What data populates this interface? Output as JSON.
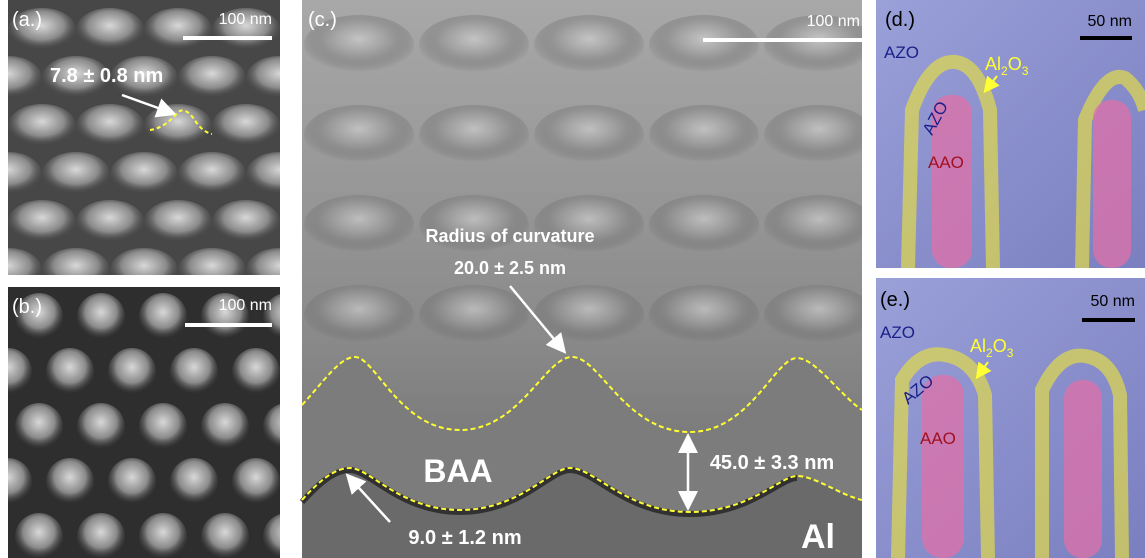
{
  "panels": [
    {
      "label": "(a.)",
      "scale_bar": "100 nm",
      "annotations": [
        "7.8 ± 0.8 nm"
      ]
    },
    {
      "label": "(b.)",
      "scale_bar": "100 nm"
    },
    {
      "label": "(c.)",
      "scale_bar": "100 nm",
      "annotations": [
        "Radius of curvature",
        "20.0 ± 2.5 nm",
        "BAA",
        "45.0 ± 3.3 nm",
        "9.0 ± 1.2 nm",
        "Al"
      ]
    },
    {
      "label": "(d.)",
      "scale_bar": "50 nm",
      "annotations": [
        "AZO",
        "AZO",
        "AAO"
      ],
      "oxide": [
        "Al",
        "2",
        "O",
        "3"
      ]
    },
    {
      "label": "(e.)",
      "scale_bar": "50 nm",
      "annotations": [
        "AZO",
        "AZO",
        "AAO"
      ],
      "oxide": [
        "Al",
        "2",
        "O",
        "3"
      ]
    }
  ]
}
